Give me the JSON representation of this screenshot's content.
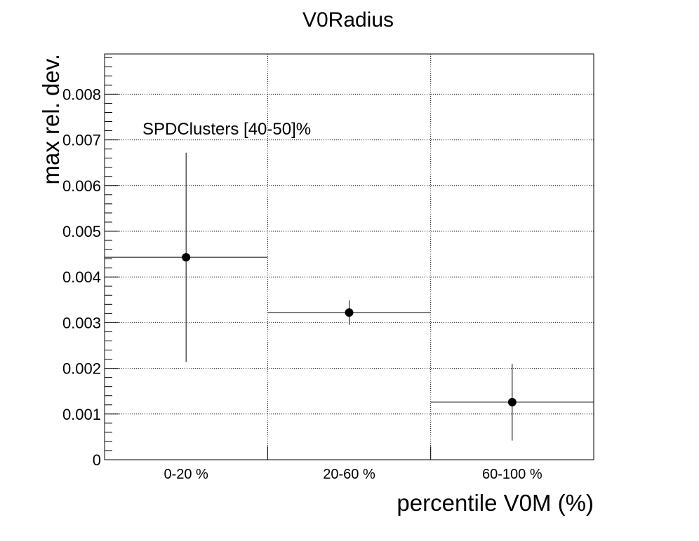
{
  "chart_data": {
    "type": "scatter",
    "title": "V0Radius",
    "xlabel": "percentile V0M (%)",
    "ylabel": "max rel. dev.",
    "annotation": "SPDClusters [40-50]%",
    "categories": [
      "0-20 %",
      "20-60 %",
      "60-100 %"
    ],
    "points": [
      {
        "category": "0-20 %",
        "y": 0.00443,
        "err_low": 0.00229,
        "err_high": 0.00229
      },
      {
        "category": "20-60 %",
        "y": 0.00322,
        "err_low": 0.00027,
        "err_high": 0.00027
      },
      {
        "category": "60-100 %",
        "y": 0.00126,
        "err_low": 0.00084,
        "err_high": 0.00084
      }
    ],
    "ylim": [
      0,
      0.00888
    ],
    "yticks": [
      "0",
      "0.001",
      "0.002",
      "0.003",
      "0.004",
      "0.005",
      "0.006",
      "0.007",
      "0.008"
    ],
    "grid": true,
    "marker_color": "#000000"
  }
}
